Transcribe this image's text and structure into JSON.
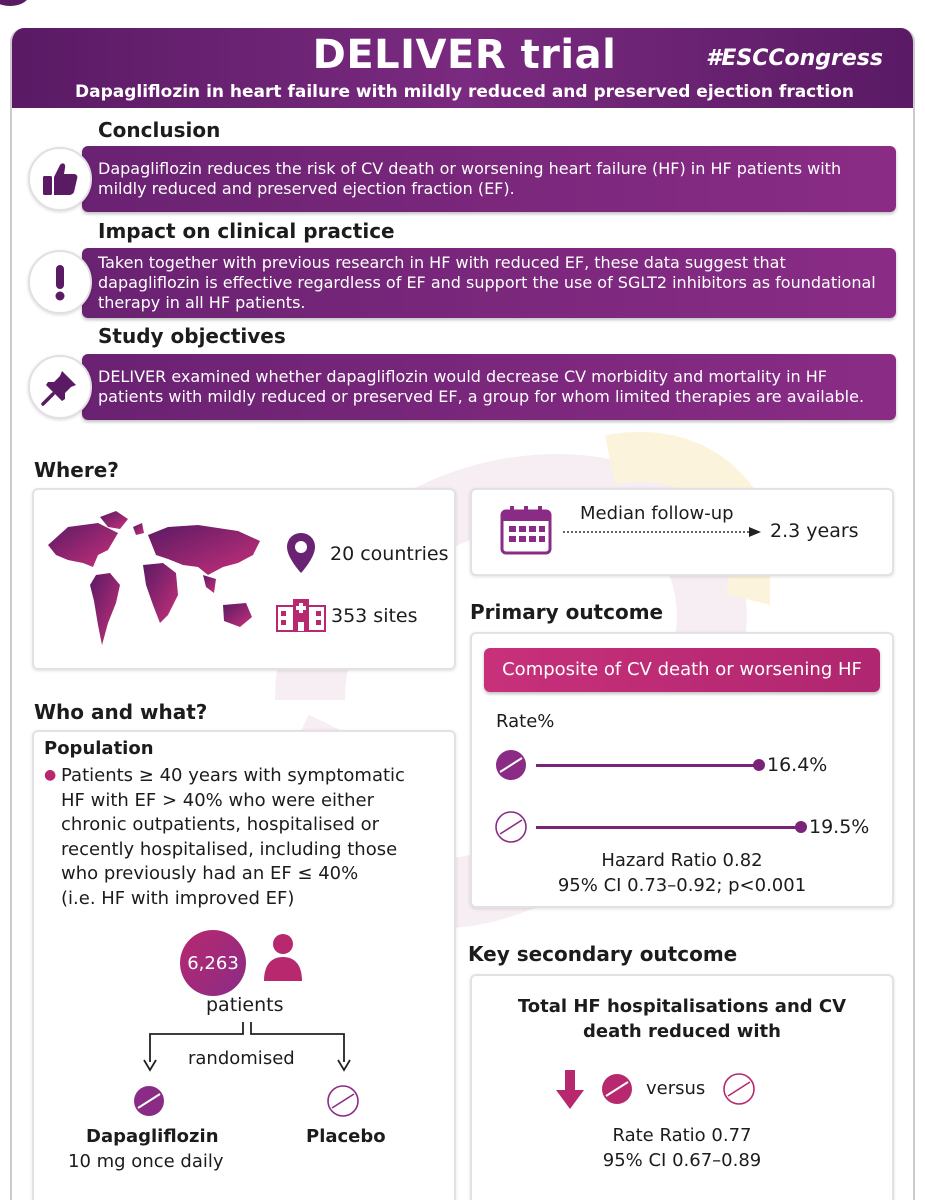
{
  "header": {
    "title": "DELIVER trial",
    "hashtag": "#ESCCongress",
    "subtitle": "Dapagliflozin in heart failure with mildly reduced and preserved ejection fraction"
  },
  "conclusion": {
    "heading": "Conclusion",
    "text": "Dapagliflozin reduces the risk of CV death or worsening heart failure (HF) in HF patients with mildly reduced and preserved ejection fraction (EF).",
    "icon": "thumbs-up-icon"
  },
  "impact": {
    "heading": "Impact on clinical practice",
    "text": "Taken together with previous research in HF with reduced EF, these data suggest that dapagliflozin is effective regardless of EF and support the use of SGLT2 inhibitors as foundational therapy in all HF patients.",
    "icon": "exclamation-icon"
  },
  "objectives": {
    "heading": "Study objectives",
    "text": "DELIVER examined whether dapagliflozin would decrease CV morbidity and mortality in HF patients with mildly reduced or preserved EF, a group for whom limited therapies are available.",
    "icon": "pin-icon"
  },
  "where": {
    "heading": "Where?",
    "countries": "20 countries",
    "sites": "353 sites"
  },
  "followup": {
    "label": "Median follow-up",
    "value": "2.3 years"
  },
  "primary": {
    "heading": "Primary outcome",
    "composite": "Composite of CV death or worsening HF",
    "rate_label": "Rate%",
    "dapa_rate": "16.4%",
    "placebo_rate": "19.5%",
    "dapa_value": 16.4,
    "placebo_value": 19.5,
    "hr": "Hazard Ratio 0.82",
    "ci": "95% CI 0.73–0.92; p<0.001"
  },
  "who": {
    "heading": "Who and what?",
    "population_label": "Population",
    "population_lines": [
      "Patients ≥ 40 years with symptomatic",
      "HF with EF > 40% who were either",
      "chronic outpatients, hospitalised or",
      "recently hospitalised, including those",
      "who previously had an EF ≤ 40%",
      "(i.e. HF with improved EF)"
    ],
    "patients_count": "6,263",
    "patients_label": "patients",
    "randomised": "randomised",
    "arm1_name": "Dapagliflozin",
    "arm1_dose": "10 mg once daily",
    "arm2_name": "Placebo"
  },
  "secondary": {
    "heading": "Key secondary outcome",
    "line1": "Total HF hospitalisations and CV",
    "line2": "death reduced with",
    "versus": "versus",
    "rr": "Rate Ratio 0.77",
    "ci": "95% CI 0.67–0.89"
  },
  "colors": {
    "purple_dark": "#5a1a64",
    "purple": "#7a2478",
    "magenta": "#c8307a"
  }
}
